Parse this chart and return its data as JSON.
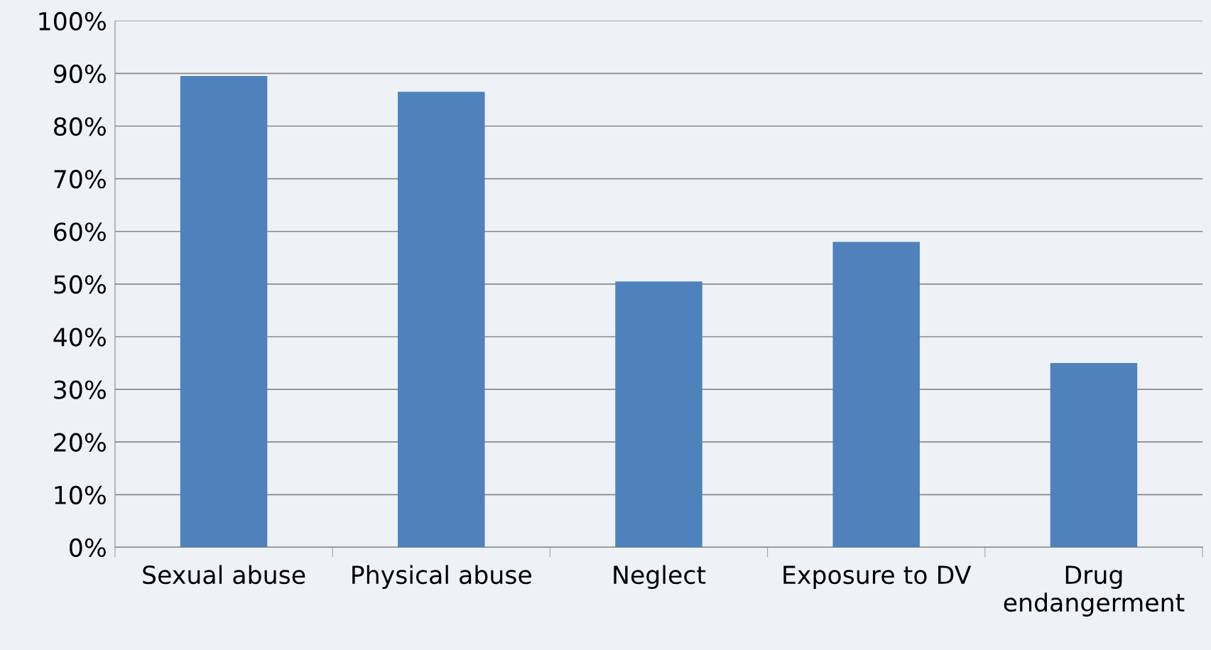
{
  "chart_data": {
    "type": "bar",
    "categories": [
      "Sexual abuse",
      "Physical abuse",
      "Neglect",
      "Exposure to DV",
      "Drug\nendangerment"
    ],
    "values": [
      89.5,
      86.5,
      50.5,
      58,
      35
    ],
    "color": "#4f81bd",
    "ylim": [
      0,
      100
    ],
    "yticks": [
      {
        "value": 0,
        "label": "0%"
      },
      {
        "value": 10,
        "label": "10%"
      },
      {
        "value": 20,
        "label": "20%"
      },
      {
        "value": 30,
        "label": "30%"
      },
      {
        "value": 40,
        "label": "40%"
      },
      {
        "value": 50,
        "label": "50%"
      },
      {
        "value": 60,
        "label": "60%"
      },
      {
        "value": 70,
        "label": "70%"
      },
      {
        "value": 80,
        "label": "80%"
      },
      {
        "value": 90,
        "label": "90%"
      },
      {
        "value": 100,
        "label": "100%"
      }
    ],
    "grid": "y",
    "legend": false
  }
}
